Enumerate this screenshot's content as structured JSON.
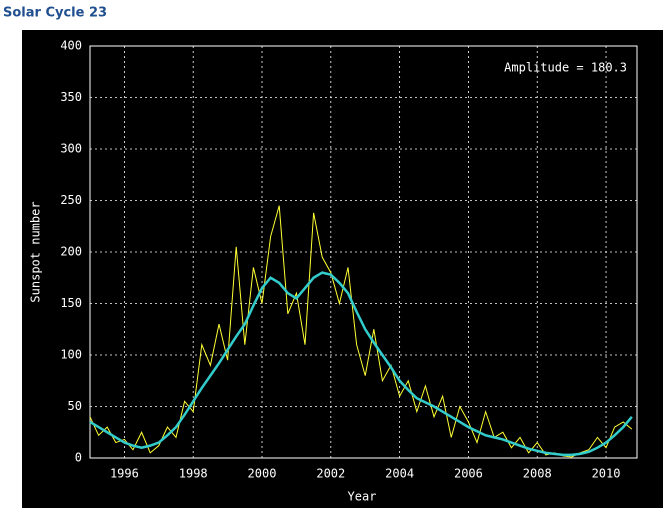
{
  "chart_data": {
    "type": "line",
    "title": "Solar Cycle 23",
    "xlabel": "Year",
    "ylabel": "Sunspot number",
    "annotation": "Amplitude = 180.3",
    "x": [
      1995,
      1995.25,
      1995.5,
      1995.75,
      1996,
      1996.25,
      1996.5,
      1996.75,
      1997,
      1997.25,
      1997.5,
      1997.75,
      1998,
      1998.25,
      1998.5,
      1998.75,
      1999,
      1999.25,
      1999.5,
      1999.75,
      2000,
      2000.25,
      2000.5,
      2000.75,
      2001,
      2001.25,
      2001.5,
      2001.75,
      2002,
      2002.25,
      2002.5,
      2002.75,
      2003,
      2003.25,
      2003.5,
      2003.75,
      2004,
      2004.25,
      2004.5,
      2004.75,
      2005,
      2005.25,
      2005.5,
      2005.75,
      2006,
      2006.25,
      2006.5,
      2006.75,
      2007,
      2007.25,
      2007.5,
      2007.75,
      2008,
      2008.25,
      2008.5,
      2008.75,
      2009,
      2009.25,
      2009.5,
      2009.75,
      2010,
      2010.25,
      2010.5,
      2010.75
    ],
    "series": [
      {
        "color": "#ffff33",
        "values": [
          40,
          22,
          30,
          15,
          18,
          8,
          25,
          5,
          12,
          30,
          20,
          55,
          45,
          110,
          90,
          130,
          95,
          205,
          110,
          185,
          150,
          215,
          245,
          140,
          160,
          110,
          238,
          195,
          180,
          150,
          185,
          110,
          80,
          125,
          75,
          90,
          60,
          75,
          45,
          70,
          40,
          60,
          20,
          50,
          35,
          15,
          45,
          20,
          25,
          10,
          20,
          5,
          15,
          3,
          5,
          2,
          1,
          5,
          8,
          20,
          10,
          30,
          35,
          28
        ]
      },
      {
        "color": "#33cccc",
        "values": [
          35,
          30,
          25,
          20,
          15,
          12,
          10,
          12,
          15,
          22,
          30,
          42,
          55,
          68,
          80,
          92,
          105,
          118,
          130,
          148,
          165,
          175,
          170,
          160,
          155,
          165,
          175,
          180,
          178,
          170,
          160,
          142,
          125,
          112,
          100,
          88,
          75,
          66,
          58,
          54,
          50,
          45,
          40,
          35,
          30,
          26,
          22,
          20,
          18,
          15,
          12,
          9,
          7,
          5,
          4,
          3,
          3,
          4,
          6,
          10,
          15,
          22,
          30,
          40
        ]
      }
    ],
    "xlim": [
      1995,
      2010.9
    ],
    "xticks": [
      1996,
      1998,
      2000,
      2002,
      2004,
      2006,
      2008,
      2010
    ],
    "ylim": [
      0,
      400
    ],
    "yticks": [
      0,
      50,
      100,
      150,
      200,
      250,
      300,
      350,
      400
    ],
    "grid": true
  }
}
